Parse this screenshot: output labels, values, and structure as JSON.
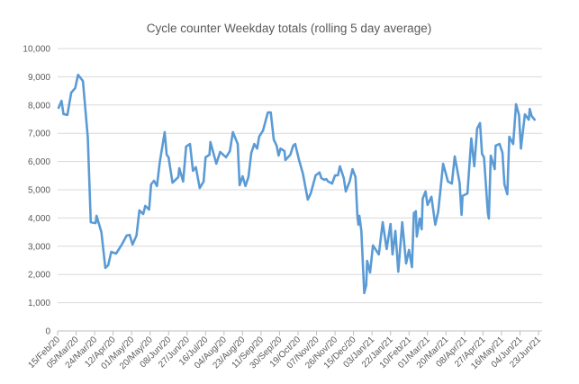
{
  "chart_data": {
    "type": "line",
    "title": "Cycle counter Weekday totals (rolling 5 day average)",
    "xlabel": "",
    "ylabel": "",
    "ylim": [
      0,
      10000
    ],
    "y_ticks": [
      "0",
      "1,000",
      "2,000",
      "3,000",
      "4,000",
      "5,000",
      "6,000",
      "7,000",
      "8,000",
      "9,000",
      "10,000"
    ],
    "x_start_date": "15/Feb/20",
    "x_range_days": [
      0,
      494
    ],
    "x_tick_interval_days": 19,
    "x_tick_labels": [
      "15/Feb/20",
      "05/Mar/20",
      "24/Mar/20",
      "12/Apr/20",
      "01/May/20",
      "20/May/20",
      "08/Jun/20",
      "27/Jun/20",
      "16/Jul/20",
      "04/Aug/20",
      "23/Aug/20",
      "11/Sep/20",
      "30/Sep/20",
      "19/Oct/20",
      "07/Nov/20",
      "26/Nov/20",
      "15/Dec/20",
      "03/Jan/21",
      "22/Jan/21",
      "10/Feb/21",
      "01/Mar/21",
      "20/Mar/21",
      "08/Apr/21",
      "27/Apr/21",
      "16/May/21",
      "04/Jun/21",
      "23/Jun/21"
    ],
    "grid": true,
    "legend": "none",
    "series": [
      {
        "name": "Weekday totals (rolling 5 day average)",
        "color": "#5B9BD5",
        "points": [
          [
            1,
            7900
          ],
          [
            4,
            8150
          ],
          [
            6,
            7680
          ],
          [
            10,
            7650
          ],
          [
            14,
            8440
          ],
          [
            18,
            8600
          ],
          [
            21,
            9070
          ],
          [
            26,
            8850
          ],
          [
            31,
            6850
          ],
          [
            34,
            3850
          ],
          [
            39,
            3820
          ],
          [
            40,
            4080
          ],
          [
            45,
            3500
          ],
          [
            49,
            2230
          ],
          [
            52,
            2330
          ],
          [
            55,
            2800
          ],
          [
            60,
            2740
          ],
          [
            66,
            3060
          ],
          [
            71,
            3380
          ],
          [
            74,
            3400
          ],
          [
            77,
            3060
          ],
          [
            81,
            3380
          ],
          [
            84,
            4270
          ],
          [
            88,
            4140
          ],
          [
            90,
            4430
          ],
          [
            94,
            4300
          ],
          [
            96,
            5190
          ],
          [
            99,
            5320
          ],
          [
            102,
            5130
          ],
          [
            105,
            5990
          ],
          [
            110,
            7040
          ],
          [
            112,
            6240
          ],
          [
            114,
            6150
          ],
          [
            118,
            5250
          ],
          [
            124,
            5450
          ],
          [
            125,
            5760
          ],
          [
            129,
            5290
          ],
          [
            132,
            6530
          ],
          [
            136,
            6620
          ],
          [
            139,
            5670
          ],
          [
            142,
            5800
          ],
          [
            146,
            5060
          ],
          [
            150,
            5290
          ],
          [
            152,
            6150
          ],
          [
            156,
            6240
          ],
          [
            157,
            6690
          ],
          [
            163,
            5920
          ],
          [
            167,
            6340
          ],
          [
            173,
            6150
          ],
          [
            177,
            6370
          ],
          [
            180,
            7040
          ],
          [
            185,
            6620
          ],
          [
            187,
            5160
          ],
          [
            190,
            5480
          ],
          [
            193,
            5130
          ],
          [
            196,
            5450
          ],
          [
            199,
            6310
          ],
          [
            202,
            6620
          ],
          [
            205,
            6460
          ],
          [
            207,
            6880
          ],
          [
            211,
            7100
          ],
          [
            216,
            7740
          ],
          [
            219,
            7740
          ],
          [
            222,
            6780
          ],
          [
            225,
            6560
          ],
          [
            227,
            6210
          ],
          [
            229,
            6460
          ],
          [
            233,
            6370
          ],
          [
            234,
            6050
          ],
          [
            239,
            6240
          ],
          [
            242,
            6560
          ],
          [
            244,
            6620
          ],
          [
            248,
            6050
          ],
          [
            252,
            5570
          ],
          [
            257,
            4650
          ],
          [
            260,
            4870
          ],
          [
            265,
            5510
          ],
          [
            269,
            5610
          ],
          [
            271,
            5410
          ],
          [
            274,
            5350
          ],
          [
            276,
            5380
          ],
          [
            278,
            5290
          ],
          [
            282,
            5220
          ],
          [
            285,
            5510
          ],
          [
            288,
            5510
          ],
          [
            290,
            5830
          ],
          [
            294,
            5410
          ],
          [
            296,
            4940
          ],
          [
            300,
            5290
          ],
          [
            303,
            5730
          ],
          [
            306,
            5450
          ],
          [
            308,
            4080
          ],
          [
            309,
            3760
          ],
          [
            310,
            4080
          ],
          [
            312,
            3540
          ],
          [
            315,
            1340
          ],
          [
            317,
            1620
          ],
          [
            318,
            2480
          ],
          [
            321,
            2070
          ],
          [
            324,
            3030
          ],
          [
            330,
            2710
          ],
          [
            334,
            3850
          ],
          [
            338,
            2900
          ],
          [
            342,
            3790
          ],
          [
            344,
            2710
          ],
          [
            347,
            3540
          ],
          [
            350,
            2100
          ],
          [
            354,
            3850
          ],
          [
            358,
            2390
          ],
          [
            361,
            2870
          ],
          [
            364,
            2260
          ],
          [
            366,
            4170
          ],
          [
            368,
            4240
          ],
          [
            369,
            3340
          ],
          [
            372,
            3980
          ],
          [
            374,
            3600
          ],
          [
            375,
            4680
          ],
          [
            378,
            4940
          ],
          [
            380,
            4460
          ],
          [
            384,
            4750
          ],
          [
            388,
            3760
          ],
          [
            391,
            4240
          ],
          [
            396,
            5920
          ],
          [
            401,
            5290
          ],
          [
            405,
            5220
          ],
          [
            408,
            6180
          ],
          [
            413,
            5250
          ],
          [
            415,
            4110
          ],
          [
            416,
            4780
          ],
          [
            421,
            4870
          ],
          [
            425,
            6820
          ],
          [
            428,
            5830
          ],
          [
            431,
            7170
          ],
          [
            434,
            7360
          ],
          [
            436,
            6270
          ],
          [
            438,
            6150
          ],
          [
            442,
            4170
          ],
          [
            443,
            3980
          ],
          [
            445,
            6210
          ],
          [
            449,
            5730
          ],
          [
            450,
            6560
          ],
          [
            454,
            6620
          ],
          [
            457,
            6310
          ],
          [
            459,
            5190
          ],
          [
            462,
            4840
          ],
          [
            464,
            6880
          ],
          [
            468,
            6620
          ],
          [
            471,
            8030
          ],
          [
            474,
            7640
          ],
          [
            476,
            6460
          ],
          [
            480,
            7670
          ],
          [
            484,
            7480
          ],
          [
            485,
            7860
          ],
          [
            487,
            7610
          ],
          [
            490,
            7480
          ]
        ]
      }
    ]
  }
}
